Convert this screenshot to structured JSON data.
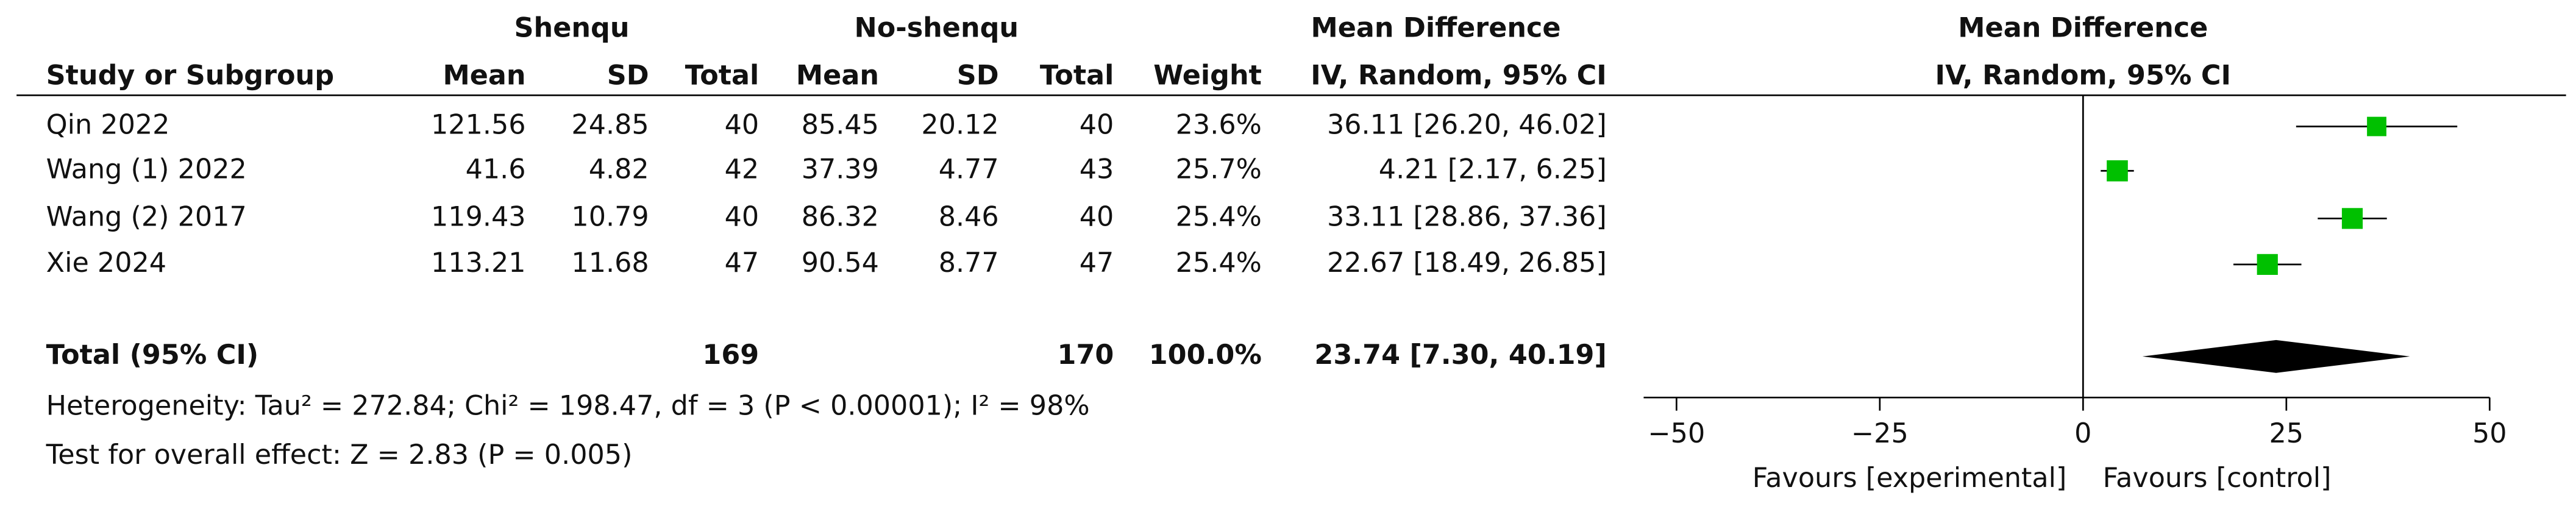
{
  "chart_data": {
    "type": "forest",
    "group_headers": [
      "Shenqu",
      "No-shenqu",
      "Mean Difference",
      "Mean Difference"
    ],
    "columns": [
      "Study or Subgroup",
      "Mean",
      "SD",
      "Total",
      "Mean",
      "SD",
      "Total",
      "Weight",
      "IV, Random, 95% CI"
    ],
    "plot_header": "IV, Random, 95% CI",
    "studies": [
      {
        "name": "Qin 2022",
        "cells": [
          "121.56",
          "24.85",
          "40",
          "85.45",
          "20.12",
          "40"
        ],
        "weight": 23.6,
        "weight_label": "23.6%",
        "md": 36.11,
        "lo": 26.2,
        "hi": 46.02,
        "ci_label": "36.11 [26.20, 46.02]"
      },
      {
        "name": "Wang (1) 2022",
        "cells": [
          "41.6",
          "4.82",
          "42",
          "37.39",
          "4.77",
          "43"
        ],
        "weight": 25.7,
        "weight_label": "25.7%",
        "md": 4.21,
        "lo": 2.17,
        "hi": 6.25,
        "ci_label": "4.21 [2.17, 6.25]"
      },
      {
        "name": "Wang (2) 2017",
        "cells": [
          "119.43",
          "10.79",
          "40",
          "86.32",
          "8.46",
          "40"
        ],
        "weight": 25.4,
        "weight_label": "25.4%",
        "md": 33.11,
        "lo": 28.86,
        "hi": 37.36,
        "ci_label": "33.11 [28.86, 37.36]"
      },
      {
        "name": "Xie 2024",
        "cells": [
          "113.21",
          "11.68",
          "47",
          "90.54",
          "8.77",
          "47"
        ],
        "weight": 25.4,
        "weight_label": "25.4%",
        "md": 22.67,
        "lo": 18.49,
        "hi": 26.85,
        "ci_label": "22.67 [18.49, 26.85]"
      }
    ],
    "total": {
      "name": "Total (95% CI)",
      "n1": "169",
      "n2": "170",
      "weight_label": "100.0%",
      "md": 23.74,
      "lo": 7.3,
      "hi": 40.19,
      "ci_label": "23.74 [7.30, 40.19]"
    },
    "heterogeneity": "Heterogeneity: Tau² = 272.84; Chi² = 198.47, df = 3 (P < 0.00001); I² = 98%",
    "overall_effect": "Test for overall effect: Z = 2.83 (P = 0.005)",
    "xlim": [
      -50,
      50
    ],
    "xticks": [
      {
        "value": -50,
        "label": "−50"
      },
      {
        "value": -25,
        "label": "−25"
      },
      0,
      25,
      50
    ],
    "x_labels": [
      "Favours [experimental]",
      "Favours [control]"
    ],
    "square_color": "#00c000",
    "diamond_color": "#000000"
  }
}
